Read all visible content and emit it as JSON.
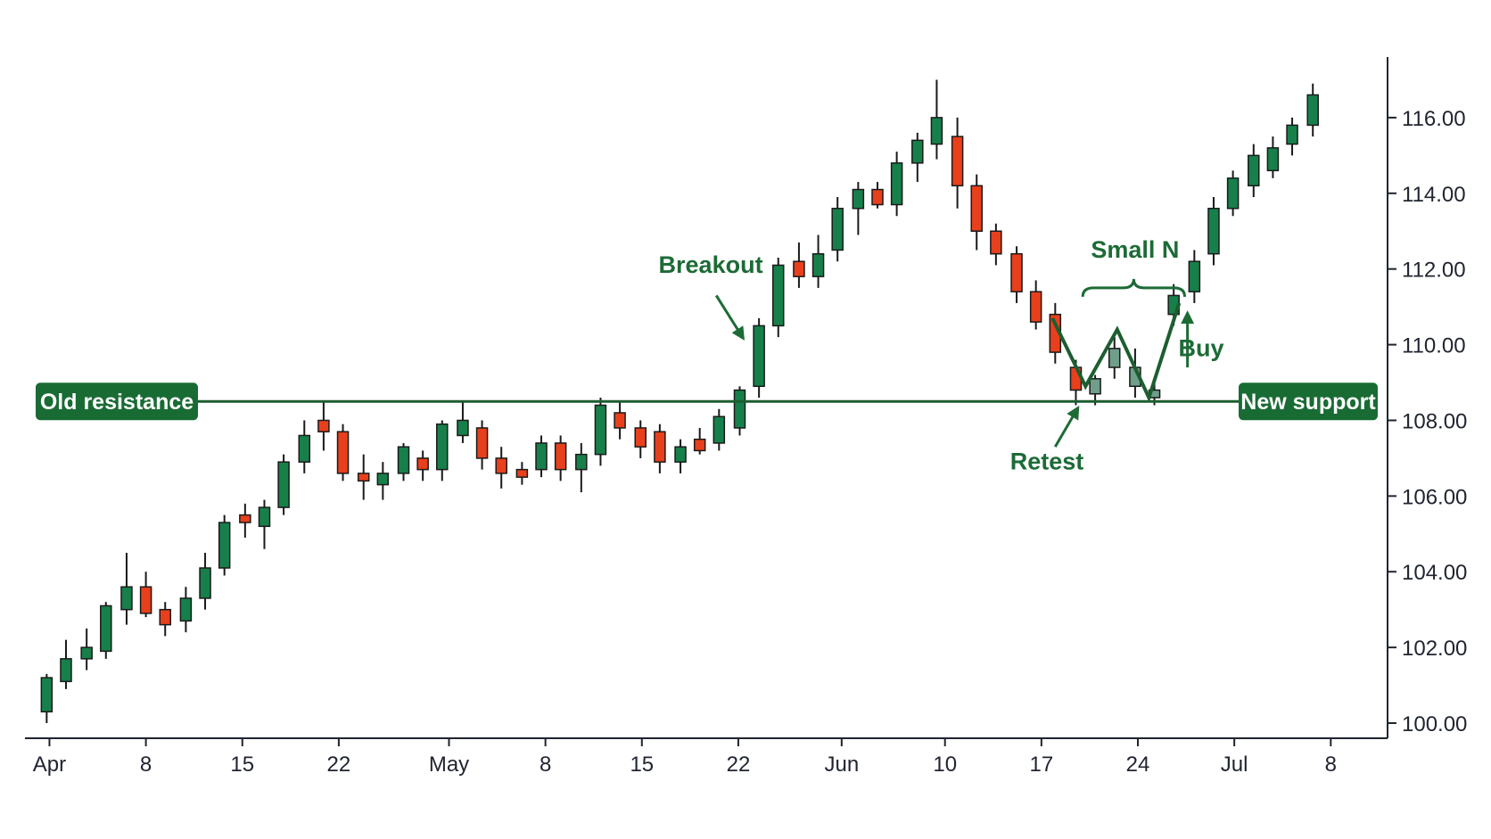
{
  "chart_data": {
    "type": "candlestick",
    "title": "",
    "xlabel": "",
    "ylabel": "",
    "ylim": [
      99.6,
      117.6
    ],
    "yticks": [
      100,
      102,
      104,
      106,
      108,
      110,
      112,
      114,
      116
    ],
    "ytick_labels": [
      "100.00",
      "102.00",
      "104.00",
      "106.00",
      "108.00",
      "110.00",
      "112.00",
      "114.00",
      "116.00"
    ],
    "y_axis_position": "right",
    "grid": false,
    "xticks": [
      {
        "label": "Apr",
        "day": 1
      },
      {
        "label": "8",
        "day": 8
      },
      {
        "label": "15",
        "day": 15
      },
      {
        "label": "22",
        "day": 22
      },
      {
        "label": "May",
        "day": 30
      },
      {
        "label": "8",
        "day": 37
      },
      {
        "label": "15",
        "day": 44
      },
      {
        "label": "22",
        "day": 51
      },
      {
        "label": "Jun",
        "day": 58.5
      },
      {
        "label": "10",
        "day": 66
      },
      {
        "label": "17",
        "day": 73
      },
      {
        "label": "24",
        "day": 80
      },
      {
        "label": "Jul",
        "day": 87
      },
      {
        "label": "8",
        "day": 94
      }
    ],
    "series": [
      {
        "day": 0.8,
        "open": 100.3,
        "high": 101.3,
        "low": 100.0,
        "close": 101.2,
        "color": "up"
      },
      {
        "day": 2.2,
        "open": 101.1,
        "high": 102.2,
        "low": 100.9,
        "close": 101.7,
        "color": "up"
      },
      {
        "day": 3.7,
        "open": 101.7,
        "high": 102.5,
        "low": 101.4,
        "close": 102.0,
        "color": "up"
      },
      {
        "day": 5.1,
        "open": 101.9,
        "high": 103.2,
        "low": 101.7,
        "close": 103.1,
        "color": "up"
      },
      {
        "day": 6.6,
        "open": 103.0,
        "high": 104.5,
        "low": 102.6,
        "close": 103.6,
        "color": "up"
      },
      {
        "day": 8.0,
        "open": 103.6,
        "high": 104.0,
        "low": 102.8,
        "close": 102.9,
        "color": "down"
      },
      {
        "day": 9.4,
        "open": 103.0,
        "high": 103.2,
        "low": 102.3,
        "close": 102.6,
        "color": "down"
      },
      {
        "day": 10.9,
        "open": 102.7,
        "high": 103.6,
        "low": 102.4,
        "close": 103.3,
        "color": "up"
      },
      {
        "day": 12.3,
        "open": 103.3,
        "high": 104.5,
        "low": 103.0,
        "close": 104.1,
        "color": "up"
      },
      {
        "day": 13.7,
        "open": 104.1,
        "high": 105.5,
        "low": 103.9,
        "close": 105.3,
        "color": "up"
      },
      {
        "day": 15.2,
        "open": 105.5,
        "high": 105.8,
        "low": 104.9,
        "close": 105.3,
        "color": "down"
      },
      {
        "day": 16.6,
        "open": 105.2,
        "high": 105.9,
        "low": 104.6,
        "close": 105.7,
        "color": "up"
      },
      {
        "day": 18.0,
        "open": 105.7,
        "high": 107.1,
        "low": 105.5,
        "close": 106.9,
        "color": "up"
      },
      {
        "day": 19.5,
        "open": 106.9,
        "high": 108.0,
        "low": 106.6,
        "close": 107.6,
        "color": "up"
      },
      {
        "day": 20.9,
        "open": 108.0,
        "high": 108.5,
        "low": 107.2,
        "close": 107.7,
        "color": "down"
      },
      {
        "day": 22.3,
        "open": 107.7,
        "high": 107.9,
        "low": 106.4,
        "close": 106.6,
        "color": "down"
      },
      {
        "day": 23.8,
        "open": 106.6,
        "high": 107.1,
        "low": 105.9,
        "close": 106.4,
        "color": "down"
      },
      {
        "day": 25.2,
        "open": 106.3,
        "high": 106.9,
        "low": 105.9,
        "close": 106.6,
        "color": "up"
      },
      {
        "day": 26.7,
        "open": 106.6,
        "high": 107.4,
        "low": 106.4,
        "close": 107.3,
        "color": "up"
      },
      {
        "day": 28.1,
        "open": 107.0,
        "high": 107.2,
        "low": 106.4,
        "close": 106.7,
        "color": "down"
      },
      {
        "day": 29.5,
        "open": 106.7,
        "high": 108.0,
        "low": 106.4,
        "close": 107.9,
        "color": "up"
      },
      {
        "day": 31.0,
        "open": 107.6,
        "high": 108.5,
        "low": 107.4,
        "close": 108.0,
        "color": "up"
      },
      {
        "day": 32.4,
        "open": 107.8,
        "high": 108.0,
        "low": 106.7,
        "close": 107.0,
        "color": "down"
      },
      {
        "day": 33.8,
        "open": 107.0,
        "high": 107.3,
        "low": 106.2,
        "close": 106.6,
        "color": "down"
      },
      {
        "day": 35.3,
        "open": 106.5,
        "high": 106.9,
        "low": 106.3,
        "close": 106.7,
        "color": "down"
      },
      {
        "day": 36.7,
        "open": 106.7,
        "high": 107.6,
        "low": 106.5,
        "close": 107.4,
        "color": "up"
      },
      {
        "day": 38.1,
        "open": 107.4,
        "high": 107.6,
        "low": 106.4,
        "close": 106.7,
        "color": "down"
      },
      {
        "day": 39.6,
        "open": 106.7,
        "high": 107.4,
        "low": 106.1,
        "close": 107.1,
        "color": "up"
      },
      {
        "day": 41.0,
        "open": 107.1,
        "high": 108.6,
        "low": 106.8,
        "close": 108.4,
        "color": "up"
      },
      {
        "day": 42.4,
        "open": 108.2,
        "high": 108.5,
        "low": 107.5,
        "close": 107.8,
        "color": "down"
      },
      {
        "day": 43.9,
        "open": 107.8,
        "high": 108.0,
        "low": 107.0,
        "close": 107.3,
        "color": "down"
      },
      {
        "day": 45.3,
        "open": 107.7,
        "high": 107.9,
        "low": 106.6,
        "close": 106.9,
        "color": "down"
      },
      {
        "day": 46.8,
        "open": 106.9,
        "high": 107.5,
        "low": 106.6,
        "close": 107.3,
        "color": "up"
      },
      {
        "day": 48.2,
        "open": 107.5,
        "high": 107.8,
        "low": 107.1,
        "close": 107.2,
        "color": "down"
      },
      {
        "day": 49.6,
        "open": 107.4,
        "high": 108.3,
        "low": 107.2,
        "close": 108.1,
        "color": "up"
      },
      {
        "day": 51.1,
        "open": 107.8,
        "high": 108.9,
        "low": 107.6,
        "close": 108.8,
        "color": "up"
      },
      {
        "day": 52.5,
        "open": 108.9,
        "high": 110.7,
        "low": 108.6,
        "close": 110.5,
        "color": "up"
      },
      {
        "day": 53.9,
        "open": 110.5,
        "high": 112.3,
        "low": 110.2,
        "close": 112.1,
        "color": "up"
      },
      {
        "day": 55.4,
        "open": 112.2,
        "high": 112.7,
        "low": 111.5,
        "close": 111.8,
        "color": "down"
      },
      {
        "day": 56.8,
        "open": 111.8,
        "high": 112.9,
        "low": 111.5,
        "close": 112.4,
        "color": "up"
      },
      {
        "day": 58.2,
        "open": 112.5,
        "high": 113.9,
        "low": 112.2,
        "close": 113.6,
        "color": "up"
      },
      {
        "day": 59.7,
        "open": 113.6,
        "high": 114.3,
        "low": 112.9,
        "close": 114.1,
        "color": "up"
      },
      {
        "day": 61.1,
        "open": 114.1,
        "high": 114.3,
        "low": 113.6,
        "close": 113.7,
        "color": "down"
      },
      {
        "day": 62.5,
        "open": 113.7,
        "high": 115.1,
        "low": 113.4,
        "close": 114.8,
        "color": "up"
      },
      {
        "day": 64.0,
        "open": 114.8,
        "high": 115.6,
        "low": 114.3,
        "close": 115.4,
        "color": "up"
      },
      {
        "day": 65.4,
        "open": 115.3,
        "high": 117.0,
        "low": 114.9,
        "close": 116.0,
        "color": "up"
      },
      {
        "day": 66.9,
        "open": 115.5,
        "high": 116.0,
        "low": 113.6,
        "close": 114.2,
        "color": "down"
      },
      {
        "day": 68.3,
        "open": 114.2,
        "high": 114.5,
        "low": 112.5,
        "close": 113.0,
        "color": "down"
      },
      {
        "day": 69.7,
        "open": 113.0,
        "high": 113.2,
        "low": 112.1,
        "close": 112.4,
        "color": "down"
      },
      {
        "day": 71.2,
        "open": 112.4,
        "high": 112.6,
        "low": 111.1,
        "close": 111.4,
        "color": "down"
      },
      {
        "day": 72.6,
        "open": 111.4,
        "high": 111.7,
        "low": 110.4,
        "close": 110.6,
        "color": "down"
      },
      {
        "day": 74.0,
        "open": 110.8,
        "high": 111.1,
        "low": 109.5,
        "close": 109.8,
        "color": "down"
      },
      {
        "day": 75.5,
        "open": 109.4,
        "high": 109.6,
        "low": 108.4,
        "close": 108.8,
        "color": "down"
      },
      {
        "day": 76.9,
        "open": 108.7,
        "high": 109.2,
        "low": 108.4,
        "close": 109.1,
        "color": "faded"
      },
      {
        "day": 78.3,
        "open": 109.4,
        "high": 110.2,
        "low": 109.1,
        "close": 109.9,
        "color": "faded"
      },
      {
        "day": 79.8,
        "open": 109.4,
        "high": 109.9,
        "low": 108.6,
        "close": 108.9,
        "color": "faded"
      },
      {
        "day": 81.2,
        "open": 108.6,
        "high": 109.1,
        "low": 108.4,
        "close": 108.8,
        "color": "faded"
      },
      {
        "day": 82.6,
        "open": 110.8,
        "high": 111.6,
        "low": 110.5,
        "close": 111.3,
        "color": "up"
      },
      {
        "day": 84.1,
        "open": 111.4,
        "high": 112.5,
        "low": 111.1,
        "close": 112.2,
        "color": "up"
      },
      {
        "day": 85.5,
        "open": 112.4,
        "high": 113.9,
        "low": 112.1,
        "close": 113.6,
        "color": "up"
      },
      {
        "day": 86.9,
        "open": 113.6,
        "high": 114.6,
        "low": 113.4,
        "close": 114.4,
        "color": "up"
      },
      {
        "day": 88.4,
        "open": 114.2,
        "high": 115.3,
        "low": 113.9,
        "close": 115.0,
        "color": "up"
      },
      {
        "day": 89.8,
        "open": 114.6,
        "high": 115.5,
        "low": 114.4,
        "close": 115.2,
        "color": "up"
      },
      {
        "day": 91.2,
        "open": 115.3,
        "high": 116.0,
        "low": 115.0,
        "close": 115.8,
        "color": "up"
      },
      {
        "day": 92.7,
        "open": 115.8,
        "high": 116.9,
        "low": 115.5,
        "close": 116.6,
        "color": "up"
      }
    ],
    "support_resistance": {
      "price": 108.5,
      "left_label": "Old resistance",
      "right_label": "New support"
    },
    "n_pattern": [
      {
        "day": 73.8,
        "price": 110.7
      },
      {
        "day": 76.2,
        "price": 108.9
      },
      {
        "day": 78.5,
        "price": 110.4
      },
      {
        "day": 80.8,
        "price": 108.6
      },
      {
        "day": 83.0,
        "price": 111.1
      }
    ],
    "annotations": [
      {
        "text": "Breakout",
        "text_day": 49.0,
        "text_price": 111.9,
        "arrow_from": [
          49.4,
          111.3
        ],
        "arrow_to": [
          51.3,
          110.2
        ]
      },
      {
        "text": "Retest",
        "text_day": 73.4,
        "text_price": 106.7,
        "arrow_from": [
          74.0,
          107.3
        ],
        "arrow_to": [
          75.6,
          108.3
        ]
      },
      {
        "text": "Buy",
        "text_day": 84.6,
        "text_price": 109.7,
        "arrow_from": [
          83.6,
          109.4
        ],
        "arrow_to": [
          83.6,
          110.8
        ]
      },
      {
        "text": "Small N",
        "text_day": 79.8,
        "text_price": 112.3,
        "brace_from_day": 76.0,
        "brace_to_day": 83.4,
        "brace_price": 111.5
      }
    ],
    "colors": {
      "up": "#17804a",
      "down": "#e8401c",
      "faded": "#6f9e8a",
      "line": "#1c5e30",
      "annotation": "#1c6b36",
      "label_box": "#196b34"
    }
  }
}
